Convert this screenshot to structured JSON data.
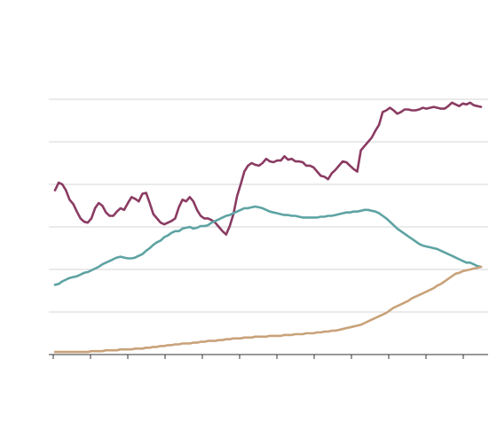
{
  "chart_data": {
    "type": "line",
    "title": "",
    "xlabel": "",
    "ylabel": "",
    "ylim": [
      0,
      300
    ],
    "xlim": [
      0,
      117
    ],
    "grid": true,
    "gridlines_y": [
      50,
      100,
      150,
      200,
      250,
      300
    ],
    "x_tick_count": 12,
    "series": [
      {
        "color": "#8a3b62",
        "values": [
          193,
          202,
          200,
          193,
          182,
          177,
          168,
          160,
          156,
          155,
          160,
          172,
          178,
          175,
          167,
          163,
          163,
          168,
          172,
          170,
          178,
          185,
          183,
          180,
          189,
          190,
          178,
          165,
          160,
          155,
          153,
          155,
          157,
          160,
          173,
          182,
          180,
          185,
          180,
          170,
          163,
          160,
          160,
          158,
          155,
          150,
          145,
          141,
          151,
          165,
          186,
          200,
          215,
          222,
          225,
          223,
          222,
          225,
          230,
          227,
          226,
          228,
          228,
          233,
          229,
          230,
          227,
          227,
          226,
          222,
          222,
          220,
          215,
          210,
          209,
          206,
          213,
          217,
          222,
          227,
          226,
          222,
          218,
          215,
          240,
          245,
          250,
          255,
          263,
          270,
          285,
          287,
          290,
          287,
          283,
          285,
          288,
          288,
          287,
          287,
          288,
          290,
          289,
          290,
          291,
          290,
          289,
          289,
          292,
          296,
          294,
          292,
          295,
          294,
          296,
          293,
          292,
          291
        ]
      },
      {
        "color": "#5ea3a3",
        "values": [
          82,
          83,
          86,
          88,
          90,
          91,
          92,
          94,
          96,
          97,
          99,
          101,
          103,
          106,
          108,
          110,
          112,
          114,
          115,
          114,
          113,
          113,
          114,
          116,
          118,
          122,
          125,
          129,
          132,
          134,
          138,
          140,
          143,
          145,
          145,
          148,
          149,
          150,
          148,
          149,
          151,
          151,
          152,
          155,
          157,
          159,
          161,
          163,
          164,
          166,
          168,
          170,
          172,
          172,
          173,
          174,
          173,
          172,
          170,
          168,
          167,
          166,
          165,
          164,
          164,
          163,
          163,
          162,
          161,
          161,
          161,
          161,
          161,
          162,
          162,
          163,
          163,
          164,
          165,
          166,
          167,
          167,
          168,
          168,
          169,
          170,
          170,
          169,
          168,
          166,
          163,
          160,
          156,
          152,
          148,
          145,
          142,
          139,
          136,
          133,
          130,
          128,
          127,
          126,
          125,
          124,
          122,
          120,
          118,
          116,
          114,
          112,
          110,
          108,
          108,
          106,
          104,
          103
        ]
      },
      {
        "color": "#c9a27a",
        "values": [
          3,
          3,
          3,
          3,
          3,
          3,
          3,
          3,
          3,
          3,
          4,
          4,
          4,
          4,
          5,
          5,
          5,
          5,
          6,
          6,
          6,
          6,
          7,
          7,
          7,
          8,
          8,
          9,
          9,
          10,
          10,
          11,
          11,
          12,
          12,
          13,
          13,
          13,
          14,
          14,
          15,
          15,
          16,
          16,
          16,
          17,
          17,
          18,
          18,
          19,
          19,
          19,
          20,
          20,
          20,
          21,
          21,
          21,
          21,
          22,
          22,
          22,
          22,
          23,
          23,
          23,
          24,
          24,
          24,
          25,
          25,
          25,
          26,
          26,
          27,
          27,
          28,
          28,
          29,
          30,
          31,
          32,
          33,
          34,
          35,
          37,
          39,
          41,
          43,
          45,
          47,
          49,
          52,
          55,
          57,
          59,
          61,
          63,
          66,
          68,
          70,
          72,
          74,
          76,
          78,
          81,
          83,
          86,
          89,
          92,
          95,
          96,
          98,
          99,
          100,
          101,
          102,
          103
        ]
      }
    ]
  }
}
